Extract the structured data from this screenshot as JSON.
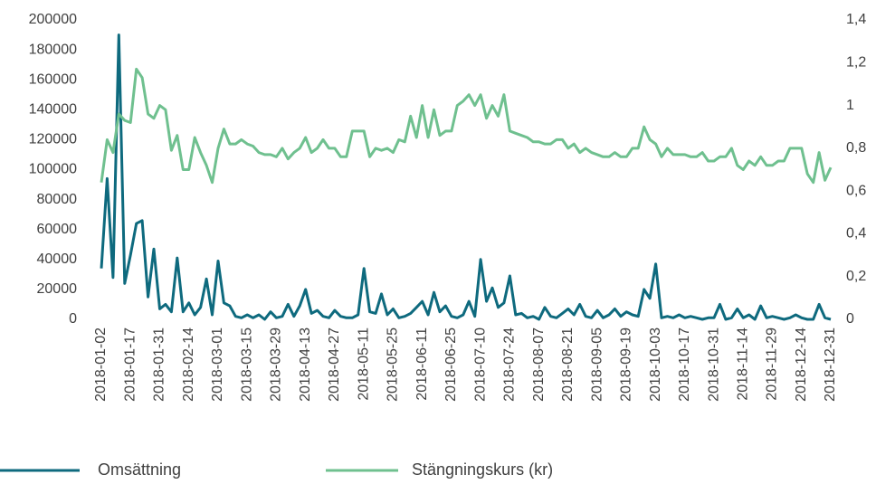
{
  "chart_data": {
    "type": "line",
    "categories": [
      "2018-01-02",
      null,
      null,
      null,
      null,
      "2018-01-17",
      null,
      null,
      null,
      null,
      "2018-01-31",
      null,
      null,
      null,
      null,
      "2018-02-14",
      null,
      null,
      null,
      null,
      "2018-03-01",
      null,
      null,
      null,
      null,
      "2018-03-15",
      null,
      null,
      null,
      null,
      "2018-03-29",
      null,
      null,
      null,
      null,
      "2018-04-13",
      null,
      null,
      null,
      null,
      "2018-04-27",
      null,
      null,
      null,
      null,
      "2018-05-11",
      null,
      null,
      null,
      null,
      "2018-05-25",
      null,
      null,
      null,
      null,
      "2018-06-11",
      null,
      null,
      null,
      null,
      "2018-06-25",
      null,
      null,
      null,
      null,
      "2018-07-10",
      null,
      null,
      null,
      null,
      "2018-07-24",
      null,
      null,
      null,
      null,
      "2018-08-07",
      null,
      null,
      null,
      null,
      "2018-08-21",
      null,
      null,
      null,
      null,
      "2018-09-05",
      null,
      null,
      null,
      null,
      "2018-09-19",
      null,
      null,
      null,
      null,
      "2018-10-03",
      null,
      null,
      null,
      null,
      "2018-10-17",
      null,
      null,
      null,
      null,
      "2018-10-31",
      null,
      null,
      null,
      null,
      "2018-11-14",
      null,
      null,
      null,
      null,
      "2018-11-29",
      null,
      null,
      null,
      null,
      "2018-12-14",
      null,
      null,
      null,
      null,
      "2018-12-31"
    ],
    "series": [
      {
        "name": "Omsättning",
        "color": "#0e6a7e",
        "values": [
          34000,
          94000,
          28000,
          190000,
          24000,
          43000,
          64000,
          66000,
          15000,
          47000,
          7000,
          10000,
          5000,
          41000,
          5000,
          11000,
          3000,
          8000,
          27000,
          3000,
          39000,
          11000,
          9000,
          2000,
          1000,
          3000,
          1000,
          3000,
          0,
          5000,
          1000,
          2000,
          10000,
          2000,
          9000,
          20000,
          4000,
          6000,
          2000,
          1000,
          6000,
          2000,
          1000,
          1000,
          3000,
          34000,
          5000,
          4000,
          17000,
          3000,
          7000,
          1000,
          2000,
          4000,
          8000,
          12000,
          3000,
          18000,
          5000,
          9000,
          2000,
          1000,
          3000,
          12000,
          2000,
          40000,
          12000,
          21000,
          8000,
          11000,
          29000,
          3000,
          4000,
          1000,
          2000,
          0,
          8000,
          2000,
          1000,
          4000,
          7000,
          3000,
          10000,
          2000,
          1000,
          6000,
          1000,
          3000,
          7000,
          2000,
          5000,
          3000,
          2000,
          20000,
          14000,
          37000,
          1000,
          2000,
          1000,
          3000,
          1000,
          2000,
          1000,
          0,
          1000,
          1000,
          10000,
          0,
          1000,
          7000,
          1000,
          3000,
          0,
          9000,
          1000,
          2000,
          1000,
          0,
          1000,
          3000,
          1000,
          0,
          0,
          10000,
          1000,
          0
        ]
      },
      {
        "name": "Stängningskurs (kr)",
        "color": "#6fc08f",
        "axis": "y2",
        "values": [
          0.64,
          0.84,
          0.78,
          0.96,
          0.93,
          0.92,
          1.17,
          1.13,
          0.96,
          0.94,
          1.0,
          0.98,
          0.79,
          0.86,
          0.7,
          0.7,
          0.85,
          0.78,
          0.72,
          0.64,
          0.8,
          0.89,
          0.82,
          0.82,
          0.84,
          0.82,
          0.81,
          0.78,
          0.77,
          0.77,
          0.76,
          0.8,
          0.75,
          0.78,
          0.8,
          0.85,
          0.78,
          0.8,
          0.84,
          0.8,
          0.8,
          0.76,
          0.76,
          0.88,
          0.88,
          0.88,
          0.76,
          0.8,
          0.79,
          0.8,
          0.78,
          0.84,
          0.83,
          0.95,
          0.85,
          1.0,
          0.85,
          0.98,
          0.86,
          0.88,
          0.88,
          1.0,
          1.02,
          1.05,
          1.0,
          1.05,
          0.94,
          1.0,
          0.95,
          1.05,
          0.88,
          0.87,
          0.86,
          0.85,
          0.83,
          0.83,
          0.82,
          0.82,
          0.84,
          0.84,
          0.8,
          0.82,
          0.78,
          0.8,
          0.78,
          0.77,
          0.76,
          0.76,
          0.78,
          0.76,
          0.76,
          0.8,
          0.8,
          0.9,
          0.84,
          0.82,
          0.76,
          0.8,
          0.77,
          0.77,
          0.77,
          0.76,
          0.76,
          0.78,
          0.74,
          0.74,
          0.76,
          0.76,
          0.8,
          0.72,
          0.7,
          0.74,
          0.72,
          0.76,
          0.72,
          0.72,
          0.74,
          0.74,
          0.8,
          0.8,
          0.8,
          0.68,
          0.64,
          0.78,
          0.65,
          0.71
        ]
      }
    ],
    "ylim": [
      0,
      200000
    ],
    "yticks": [
      0,
      20000,
      40000,
      60000,
      80000,
      100000,
      120000,
      140000,
      160000,
      180000,
      200000
    ],
    "y2lim": [
      0,
      1.4
    ],
    "y2ticks": [
      0,
      {
        "value": 0.2,
        "label": "0,2"
      },
      {
        "value": 0.4,
        "label": "0,4"
      },
      {
        "value": 0.6,
        "label": "0,6"
      },
      {
        "value": 0.8,
        "label": "0,8"
      },
      1,
      {
        "value": 1.2,
        "label": "1,2"
      },
      {
        "value": 1.4,
        "label": "1,4"
      }
    ],
    "grid": false,
    "legend": "bottom"
  }
}
